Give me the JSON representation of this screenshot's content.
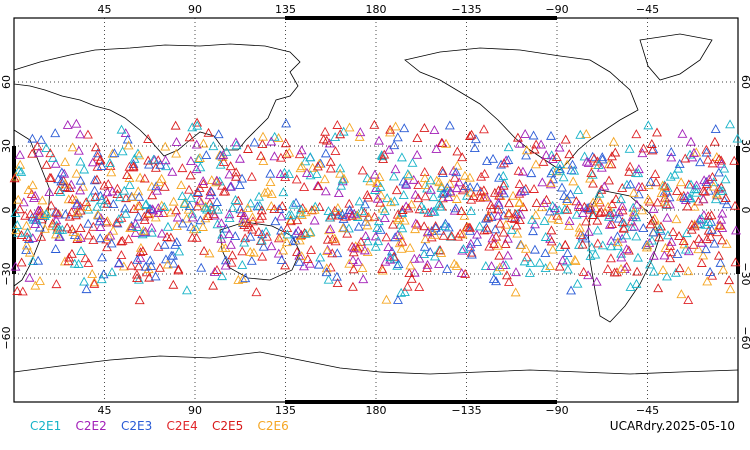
{
  "map": {
    "projection": "cylindrical",
    "lon_range": [
      0,
      360
    ],
    "lat_range": [
      -90,
      90
    ],
    "lon_tick_labels": [
      "45",
      "90",
      "135",
      "180",
      "−135",
      "−90",
      "−45"
    ],
    "lat_tick_labels": [
      "60",
      "30",
      "0",
      "−30",
      "−60"
    ],
    "grid": "dotted",
    "coastline_color": "#000000",
    "marker_shape": "triangle-outline",
    "observation_lat_band": [
      -45,
      45
    ]
  },
  "legend": {
    "items": [
      {
        "label": "C2E1",
        "color": "#17b3c8"
      },
      {
        "label": "C2E2",
        "color": "#a21fb8"
      },
      {
        "label": "C2E3",
        "color": "#2a5bd6"
      },
      {
        "label": "C2E4",
        "color": "#e0262a"
      },
      {
        "label": "C2E5",
        "color": "#d81b1b"
      },
      {
        "label": "C2E6",
        "color": "#f5a623"
      }
    ]
  },
  "source_label": "UCARdry.2025-05-10"
}
